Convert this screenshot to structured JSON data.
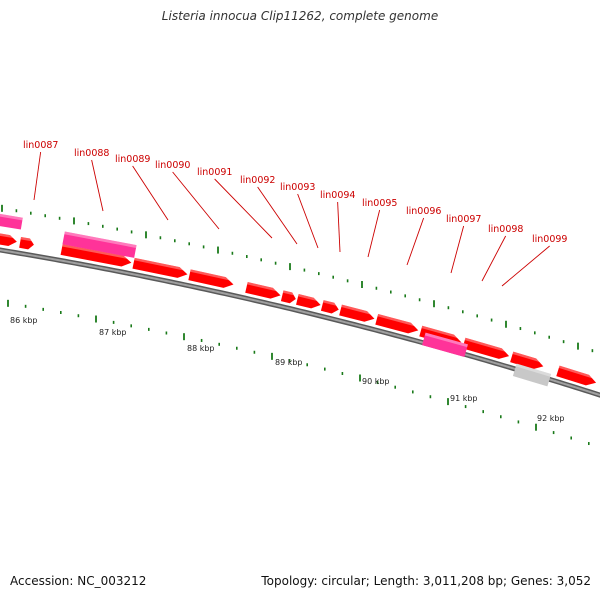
{
  "title": "Listeria innocua Clip11262, complete genome",
  "footer": {
    "accession": "Accession: NC_003212",
    "summary": "Topology: circular; Length: 3,011,208 bp; Genes: 3,052"
  },
  "colors": {
    "cds": "#ff0000",
    "rna": "#ff3399",
    "other": "#c8c8c8",
    "label": "#cc0000",
    "tick": "#1a7a1a",
    "backbone": "#808080"
  },
  "genes": [
    {
      "id": "lin0087",
      "type": "cds"
    },
    {
      "id": "lin0088",
      "type": "rna"
    },
    {
      "id": "lin0089",
      "type": "cds"
    },
    {
      "id": "lin0090",
      "type": "cds"
    },
    {
      "id": "lin0091",
      "type": "cds"
    },
    {
      "id": "lin0092",
      "type": "cds"
    },
    {
      "id": "lin0093",
      "type": "cds"
    },
    {
      "id": "lin0094",
      "type": "cds"
    },
    {
      "id": "lin0095",
      "type": "cds"
    },
    {
      "id": "lin0096",
      "type": "rna"
    },
    {
      "id": "lin0097",
      "type": "cds"
    },
    {
      "id": "lin0098",
      "type": "cds"
    },
    {
      "id": "lin0099",
      "type": "other"
    }
  ],
  "scale_labels": [
    "86 kbp",
    "87 kbp",
    "88 kbp",
    "89 kbp",
    "90 kbp",
    "91 kbp",
    "92 kbp"
  ]
}
